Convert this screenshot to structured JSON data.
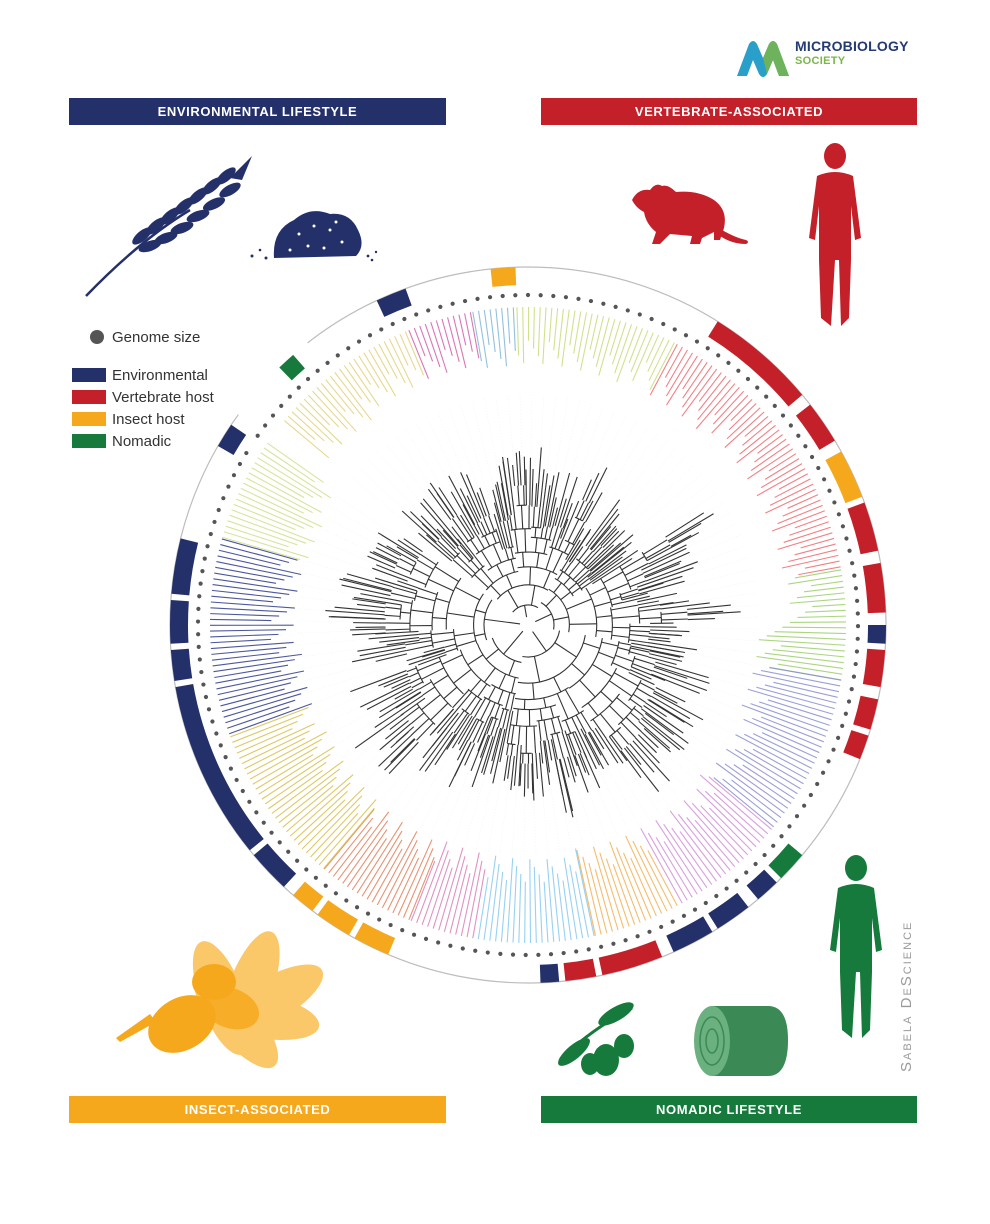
{
  "logo": {
    "line1": "MICROBIOLOGY",
    "line2": "SOCIETY"
  },
  "banners": {
    "environmental": "ENVIRONMENTAL LIFESTYLE",
    "vertebrate": "VERTEBRATE-ASSOCIATED",
    "insect": "INSECT-ASSOCIATED",
    "nomadic": "NOMADIC LIFESTYLE"
  },
  "legend": {
    "genome_size": "Genome size",
    "items": [
      {
        "label": "Environmental",
        "color": "#243069"
      },
      {
        "label": "Vertebrate host",
        "color": "#c4202a"
      },
      {
        "label": "Insect host",
        "color": "#f6a81c"
      },
      {
        "label": "Nomadic",
        "color": "#157a3b"
      }
    ]
  },
  "colors": {
    "environmental": "#243069",
    "vertebrate": "#c4202a",
    "insect": "#f6a81c",
    "nomadic": "#157a3b",
    "dot": "#555555"
  },
  "signature": "Sabela DeScience",
  "icons": [
    "wheat-icon",
    "soil-icon",
    "rat-icon",
    "human-icon",
    "bee-flower-icon",
    "olive-icon",
    "hay-bale-icon",
    "human-nomadic-icon"
  ]
}
